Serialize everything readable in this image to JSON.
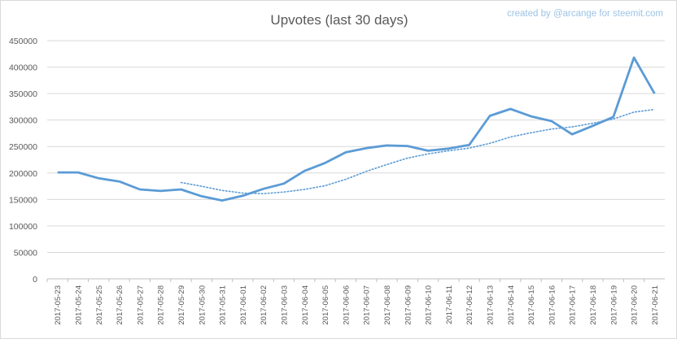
{
  "watermark": "created by @arcange for steemit.com",
  "colors": {
    "series": "#5b9bd5",
    "gridline": "#d9d9d9",
    "text": "#595959",
    "watermark": "#9dc3e6"
  },
  "chart_data": {
    "type": "line",
    "title": "Upvotes (last 30 days)",
    "xlabel": "",
    "ylabel": "",
    "ylim": [
      0,
      450000
    ],
    "y_ticks": [
      0,
      50000,
      100000,
      150000,
      200000,
      250000,
      300000,
      350000,
      400000,
      450000
    ],
    "grid": true,
    "legend": "none",
    "categories": [
      "2017-05-23",
      "2017-05-24",
      "2017-05-25",
      "2017-05-26",
      "2017-05-27",
      "2017-05-28",
      "2017-05-29",
      "2017-05-30",
      "2017-05-31",
      "2017-06-01",
      "2017-06-02",
      "2017-06-03",
      "2017-06-04",
      "2017-06-05",
      "2017-06-06",
      "2017-06-07",
      "2017-06-08",
      "2017-06-09",
      "2017-06-10",
      "2017-06-11",
      "2017-06-12",
      "2017-06-13",
      "2017-06-14",
      "2017-06-15",
      "2017-06-16",
      "2017-06-17",
      "2017-06-18",
      "2017-06-19",
      "2017-06-20",
      "2017-06-21"
    ],
    "series": [
      {
        "style": "solid",
        "values": [
          201000,
          201000,
          190000,
          184000,
          169000,
          166000,
          169000,
          156000,
          148000,
          157000,
          170000,
          180000,
          204000,
          219000,
          239000,
          247000,
          252000,
          251000,
          242000,
          246000,
          253000,
          308000,
          321000,
          307000,
          298000,
          273000,
          289000,
          306000,
          418000,
          350000
        ]
      },
      {
        "style": "dotted",
        "values": [
          null,
          null,
          null,
          null,
          null,
          null,
          182000,
          175000,
          167000,
          162000,
          161000,
          164000,
          169000,
          176000,
          188000,
          203000,
          216000,
          228000,
          236000,
          242000,
          247000,
          256000,
          268000,
          276000,
          283000,
          287000,
          294000,
          302000,
          315000,
          320000
        ]
      }
    ]
  }
}
